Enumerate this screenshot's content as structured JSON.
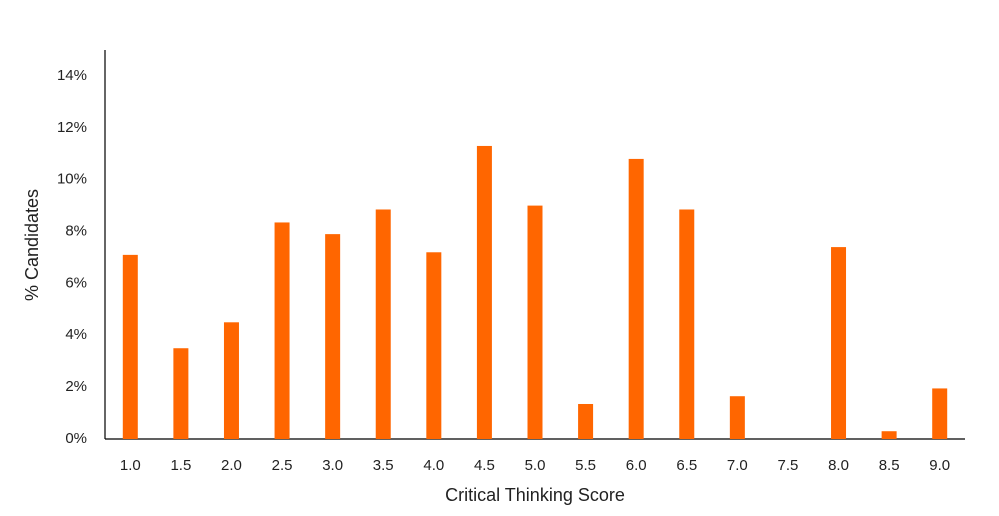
{
  "chart_data": {
    "type": "bar",
    "x_label": "Critical Thinking Score",
    "y_label": "% Candidates",
    "categories": [
      "1.0",
      "1.5",
      "2.0",
      "2.5",
      "3.0",
      "3.5",
      "4.0",
      "4.5",
      "5.0",
      "5.5",
      "6.0",
      "6.5",
      "7.0",
      "7.5",
      "8.0",
      "8.5",
      "9.0"
    ],
    "values": [
      7.1,
      3.5,
      4.5,
      8.35,
      7.9,
      8.85,
      7.2,
      11.3,
      9.0,
      1.35,
      10.8,
      8.85,
      1.65,
      0,
      7.4,
      0.3,
      1.95
    ],
    "color": "#ff6600",
    "ylim": [
      0,
      15
    ],
    "yticks": [
      {
        "value": 0,
        "label": "0%"
      },
      {
        "value": 2,
        "label": "2%"
      },
      {
        "value": 4,
        "label": "4%"
      },
      {
        "value": 6,
        "label": "6%"
      },
      {
        "value": 8,
        "label": "8%"
      },
      {
        "value": 10,
        "label": "10%"
      },
      {
        "value": 12,
        "label": "12%"
      },
      {
        "value": 14,
        "label": "14%"
      }
    ],
    "grid": false
  }
}
